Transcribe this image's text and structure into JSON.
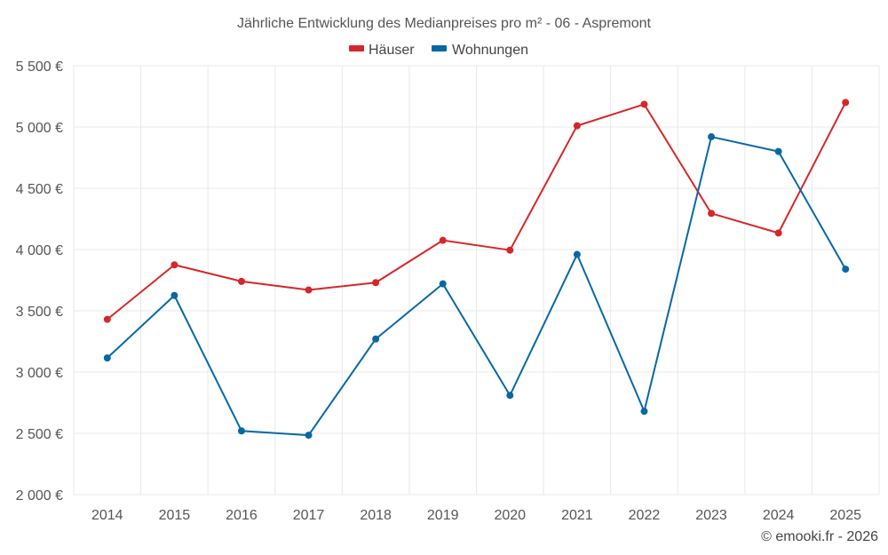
{
  "chart_data": {
    "type": "line",
    "title": "Jährliche Entwicklung des Medianpreises pro m² - 06 - Aspremont",
    "categories": [
      "2014",
      "2015",
      "2016",
      "2017",
      "2018",
      "2019",
      "2020",
      "2021",
      "2022",
      "2023",
      "2024",
      "2025"
    ],
    "series": [
      {
        "name": "Häuser",
        "color": "#d62728",
        "values": [
          3430,
          3875,
          3740,
          3670,
          3730,
          4075,
          3995,
          5010,
          5185,
          4295,
          4135,
          5200
        ]
      },
      {
        "name": "Wohnungen",
        "color": "#0868a4",
        "values": [
          3115,
          3625,
          2520,
          2485,
          3270,
          3720,
          2810,
          3960,
          2680,
          4920,
          4800,
          3840
        ]
      }
    ],
    "ylim": [
      2000,
      5500
    ],
    "yticks": [
      2000,
      2500,
      3000,
      3500,
      4000,
      4500,
      5000,
      5500
    ],
    "ytick_labels": [
      "2 000 €",
      "2 500 €",
      "3 000 €",
      "3 500 €",
      "4 000 €",
      "4 500 €",
      "5 000 €",
      "5 500 €"
    ],
    "xlabel": "",
    "ylabel": "",
    "grid": true,
    "legend_position": "top-center"
  },
  "credit": "© emooki.fr - 2026"
}
